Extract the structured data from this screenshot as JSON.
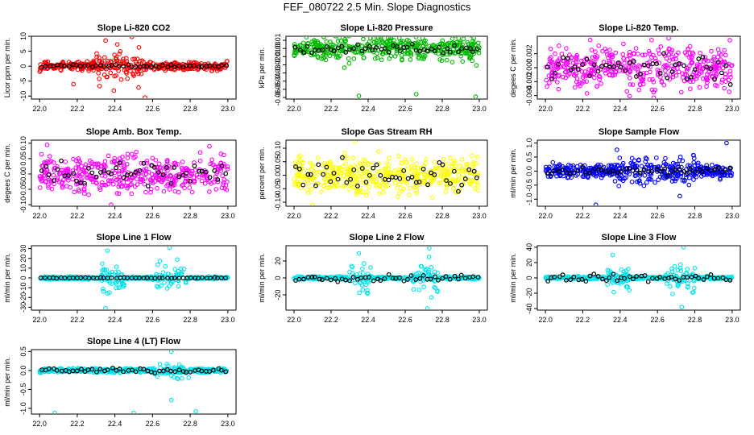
{
  "page": {
    "title": "FEF_080722  2.5 Min. Slope Diagnostics"
  },
  "chart_data": [
    {
      "type": "scatter",
      "title": "Slope Li-820 CO2",
      "ylabel": "Licor ppm per min.",
      "xlim": [
        22.0,
        23.0
      ],
      "ylim": [
        -11,
        10
      ],
      "xticks": [
        "22.0",
        "22.2",
        "22.4",
        "22.6",
        "22.8",
        "23.0"
      ],
      "yticks": [
        "-10",
        "-5",
        "0",
        "5",
        "10"
      ],
      "main_color": "#ff0000",
      "spread": 1.2,
      "spike_window": [
        22.3,
        22.55
      ],
      "spike_amp": 6,
      "extremes": [
        [
          22.49,
          9.8
        ],
        [
          22.56,
          -10.5
        ],
        [
          22.18,
          -6
        ]
      ],
      "black_spread": 0.4
    },
    {
      "type": "scatter",
      "title": "Slope Li-820 Pressure",
      "ylabel": "kPa per min.",
      "xlim": [
        22.0,
        23.0
      ],
      "ylim": [
        -0.062,
        0.015
      ],
      "xticks": [
        "22.0",
        "22.2",
        "22.4",
        "22.6",
        "22.8",
        "23.0"
      ],
      "yticks": [
        "-0.06",
        "-0.05",
        "-0.04",
        "-0.03",
        "-0.02",
        "-0.01",
        "0.00",
        "0.01"
      ],
      "main_color": "#00bb00",
      "spread": 0.007,
      "spike_window": [
        22.0,
        23.0
      ],
      "spike_amp": 0.01,
      "extremes": [
        [
          22.35,
          -0.058
        ],
        [
          22.66,
          -0.056
        ],
        [
          22.98,
          -0.059
        ],
        [
          22.52,
          0.013
        ]
      ],
      "black_spread": 0.005
    },
    {
      "type": "scatter",
      "title": "Slope Li-820 Temp.",
      "ylabel": "degees C per min.",
      "xlim": [
        22.0,
        23.0
      ],
      "ylim": [
        -0.0045,
        0.0045
      ],
      "xticks": [
        "22.0",
        "22.2",
        "22.4",
        "22.6",
        "22.8",
        "23.0"
      ],
      "yticks": [
        "-0.004",
        "-0.002",
        "0.000",
        "0.002"
      ],
      "main_color": "#ff00ff",
      "spread": 0.0022,
      "spike_window": [
        22.0,
        23.0
      ],
      "spike_amp": 0.001,
      "extremes": [
        [
          22.66,
          0.0042
        ],
        [
          22.58,
          -0.0043
        ]
      ],
      "black_spread": 0.0016
    },
    {
      "type": "scatter",
      "title": "Slope Amb. Box Temp.",
      "ylabel": "degees C per min.",
      "xlim": [
        22.0,
        23.0
      ],
      "ylim": [
        -0.105,
        0.11
      ],
      "xticks": [
        "22.0",
        "22.2",
        "22.4",
        "22.6",
        "22.8",
        "23.0"
      ],
      "yticks": [
        "-0.10",
        "-0.05",
        "0.00",
        "0.05",
        "0.10"
      ],
      "main_color": "#ff00ff",
      "spread": 0.04,
      "spike_window": [
        22.0,
        23.0
      ],
      "spike_amp": 0.02,
      "extremes": [
        [
          22.04,
          0.095
        ],
        [
          22.38,
          -0.1
        ]
      ],
      "black_spread": 0.04
    },
    {
      "type": "scatter",
      "title": "Slope Gas Stream RH",
      "ylabel": "percent per min.",
      "xlim": [
        22.0,
        23.0
      ],
      "ylim": [
        -0.115,
        0.13
      ],
      "xticks": [
        "22.0",
        "22.2",
        "22.4",
        "22.6",
        "22.8",
        "23.0"
      ],
      "yticks": [
        "-0.10",
        "-0.05",
        "0.00",
        "0.05",
        "0.10"
      ],
      "main_color": "#ffff00",
      "spread": 0.05,
      "spike_window": [
        22.0,
        23.0
      ],
      "spike_amp": 0.02,
      "extremes": [
        [
          22.33,
          0.125
        ],
        [
          22.1,
          -0.11
        ]
      ],
      "black_spread": 0.05
    },
    {
      "type": "scatter",
      "title": "Slope Sample Flow",
      "ylabel": "ml/min per min.",
      "xlim": [
        22.0,
        23.0
      ],
      "ylim": [
        -1.25,
        1.1
      ],
      "xticks": [
        "22.0",
        "22.2",
        "22.4",
        "22.6",
        "22.8",
        "23.0"
      ],
      "yticks": [
        "-1.0",
        "-0.5",
        "0.0",
        "0.5",
        "1.0"
      ],
      "main_color": "#0000ff",
      "spread": 0.2,
      "spike_window": [
        22.35,
        22.8
      ],
      "spike_amp": 0.4,
      "extremes": [
        [
          22.97,
          1.0
        ],
        [
          22.27,
          -1.2
        ]
      ],
      "black_spread": 0.12
    },
    {
      "type": "scatter",
      "title": "Slope Line 1 Flow",
      "ylabel": "ml/min per min.",
      "xlim": [
        22.0,
        23.0
      ],
      "ylim": [
        -33,
        33
      ],
      "xticks": [
        "22.0",
        "22.2",
        "22.4",
        "22.6",
        "22.8",
        "23.0"
      ],
      "yticks": [
        "-30",
        "-20",
        "-10",
        "0",
        "10",
        "20",
        "30"
      ],
      "main_color": "#00e5ee",
      "spread": 1.2,
      "spike_window": [
        22.33,
        22.45
      ],
      "spike_window2": [
        22.62,
        22.78
      ],
      "spike_amp": 18,
      "extremes": [
        [
          22.35,
          -31
        ],
        [
          22.69,
          31
        ],
        [
          22.36,
          28
        ]
      ],
      "black_spread": 0.3
    },
    {
      "type": "scatter",
      "title": "Slope Line 2 Flow",
      "ylabel": "ml/min per min.",
      "xlim": [
        22.0,
        23.0
      ],
      "ylim": [
        -38,
        38
      ],
      "xticks": [
        "22.0",
        "22.2",
        "22.4",
        "22.6",
        "22.8",
        "23.0"
      ],
      "yticks": [
        "-20",
        "0",
        "20"
      ],
      "main_color": "#00e5ee",
      "spread": 1.5,
      "spike_window": [
        22.3,
        22.42
      ],
      "spike_window2": [
        22.64,
        22.78
      ],
      "spike_amp": 18,
      "extremes": [
        [
          22.35,
          29
        ],
        [
          22.72,
          -36
        ],
        [
          22.73,
          35
        ]
      ],
      "black_spread": 3
    },
    {
      "type": "scatter",
      "title": "Slope Line 3 Flow",
      "ylabel": "ml/min per min.",
      "xlim": [
        22.0,
        23.0
      ],
      "ylim": [
        -42,
        42
      ],
      "xticks": [
        "22.0",
        "22.2",
        "22.4",
        "22.6",
        "22.8",
        "23.0"
      ],
      "yticks": [
        "-40",
        "-20",
        "0",
        "20",
        "40"
      ],
      "main_color": "#00e5ee",
      "spread": 1.5,
      "spike_window": [
        22.33,
        22.45
      ],
      "spike_window2": [
        22.64,
        22.8
      ],
      "spike_amp": 18,
      "extremes": [
        [
          22.36,
          30
        ],
        [
          22.73,
          -38
        ],
        [
          22.74,
          40
        ]
      ],
      "black_spread": 4
    },
    {
      "type": "scatter",
      "title": "Slope Line 4 (LT) Flow",
      "ylabel": "ml/min per min.",
      "xlim": [
        22.0,
        23.0
      ],
      "ylim": [
        -1.15,
        0.55
      ],
      "xticks": [
        "22.0",
        "22.2",
        "22.4",
        "22.6",
        "22.8",
        "23.0"
      ],
      "yticks": [
        "-1.0",
        "-0.5",
        "0.0",
        "0.5"
      ],
      "main_color": "#00e5ee",
      "spread": 0.05,
      "spike_window": [
        22.6,
        22.8
      ],
      "spike_amp": 0.15,
      "extremes": [
        [
          22.7,
          0.5
        ],
        [
          22.08,
          -1.12
        ],
        [
          22.5,
          -1.12
        ],
        [
          22.83,
          -1.08
        ],
        [
          22.7,
          -0.78
        ]
      ],
      "black_spread": 0.05
    }
  ]
}
